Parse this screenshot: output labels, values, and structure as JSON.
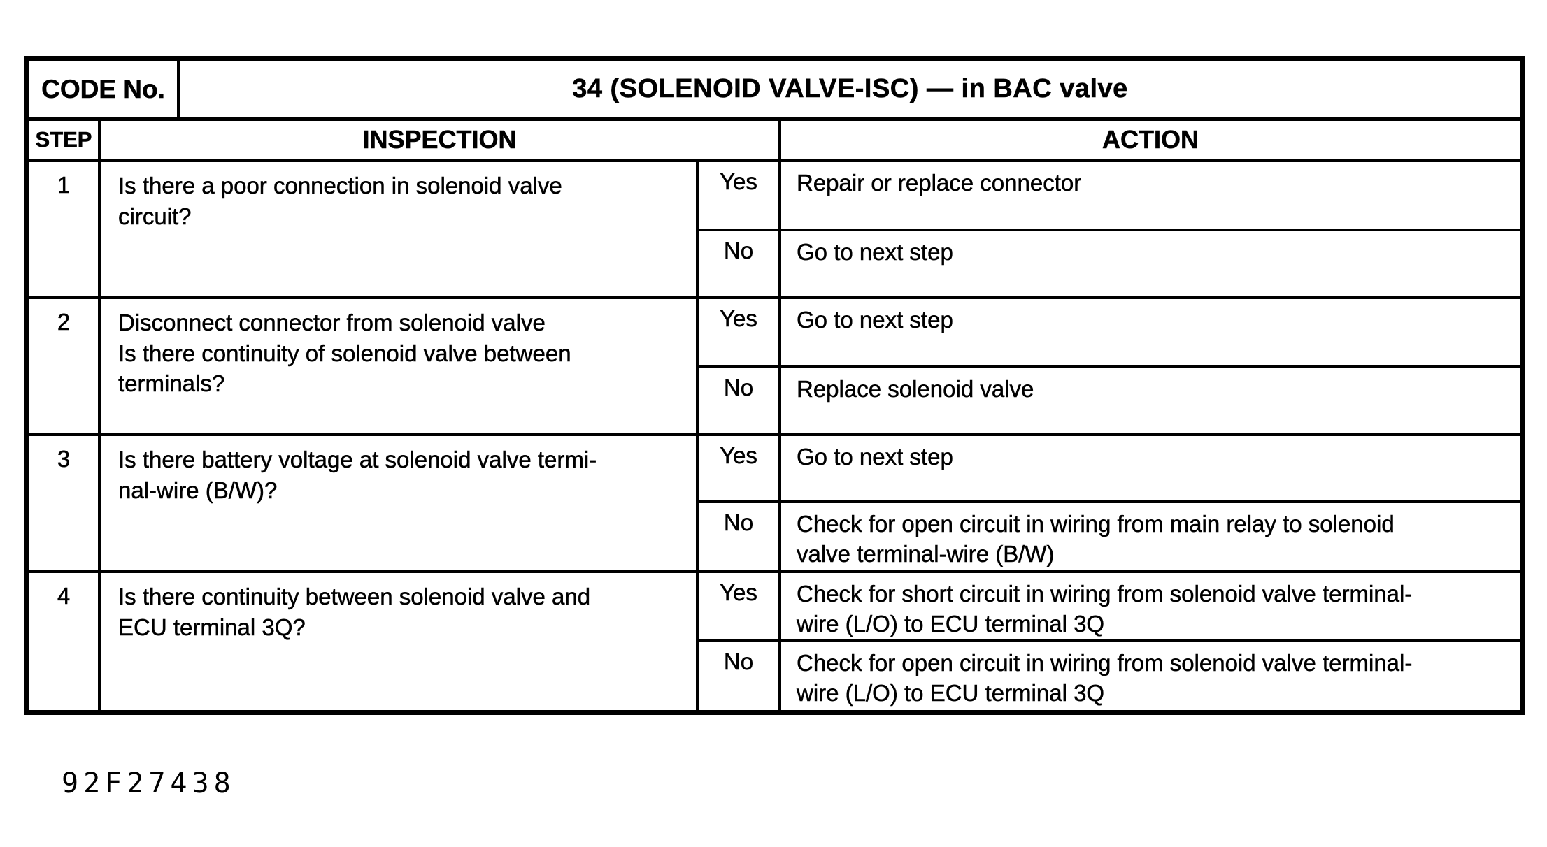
{
  "document": {
    "code_label": "CODE No.",
    "code_title": "34 (SOLENOID VALVE-ISC) — in BAC valve",
    "headers": {
      "step": "STEP",
      "inspection": "INSPECTION",
      "action": "ACTION"
    },
    "steps": [
      {
        "num": "1",
        "inspection": "Is there a poor connection in solenoid valve\ncircuit?",
        "yes_label": "Yes",
        "no_label": "No",
        "yes_action": "Repair or replace connector",
        "no_action": "Go to next step"
      },
      {
        "num": "2",
        "inspection": "Disconnect connector from solenoid valve\nIs there continuity of solenoid valve between\nterminals?",
        "yes_label": "Yes",
        "no_label": "No",
        "yes_action": "Go to next step",
        "no_action": "Replace solenoid valve"
      },
      {
        "num": "3",
        "inspection": "Is there battery voltage at solenoid valve termi-\nnal-wire (B/W)?",
        "yes_label": "Yes",
        "no_label": "No",
        "yes_action": "Go to next step",
        "no_action": "Check for open circuit in wiring from main relay to solenoid\nvalve terminal-wire (B/W)"
      },
      {
        "num": "4",
        "inspection": "Is there continuity between solenoid valve and\nECU terminal 3Q?",
        "yes_label": "Yes",
        "no_label": "No",
        "yes_action": "Check for short circuit in wiring from solenoid valve terminal-\nwire (L/O) to ECU terminal 3Q",
        "no_action": "Check for open circuit in wiring from solenoid valve terminal-\nwire (L/O) to ECU terminal 3Q"
      }
    ],
    "footer_code": "92F27438"
  }
}
